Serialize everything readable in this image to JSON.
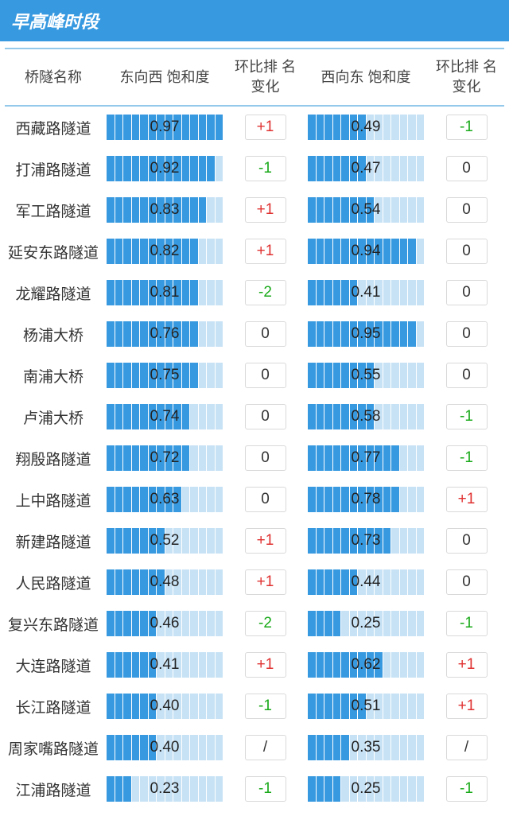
{
  "title": "早高峰时段",
  "columns": [
    "桥隧名称",
    "东向西\n饱和度",
    "环比排\n名变化",
    "西向东\n饱和度",
    "环比排\n名变化"
  ],
  "bar_segments": 14,
  "colors": {
    "banner_bg": "#3799e0",
    "banner_text": "#ffffff",
    "table_border": "#95c9eb",
    "bar_on": "#3799e0",
    "bar_off": "#c7e2f5",
    "delta_pos": "#e03030",
    "delta_neg": "#1aaa1a",
    "delta_zero": "#333333",
    "box_border": "#d9d9d9"
  },
  "rows": [
    {
      "name": "西藏路隧道",
      "ew": 0.97,
      "ew_d": "+1",
      "we": 0.49,
      "we_d": "-1"
    },
    {
      "name": "打浦路隧道",
      "ew": 0.92,
      "ew_d": "-1",
      "we": 0.47,
      "we_d": "0"
    },
    {
      "name": "军工路隧道",
      "ew": 0.83,
      "ew_d": "+1",
      "we": 0.54,
      "we_d": "0"
    },
    {
      "name": "延安东路隧道",
      "ew": 0.82,
      "ew_d": "+1",
      "we": 0.94,
      "we_d": "0"
    },
    {
      "name": "龙耀路隧道",
      "ew": 0.81,
      "ew_d": "-2",
      "we": 0.41,
      "we_d": "0"
    },
    {
      "name": "杨浦大桥",
      "ew": 0.76,
      "ew_d": "0",
      "we": 0.95,
      "we_d": "0"
    },
    {
      "name": "南浦大桥",
      "ew": 0.75,
      "ew_d": "0",
      "we": 0.55,
      "we_d": "0"
    },
    {
      "name": "卢浦大桥",
      "ew": 0.74,
      "ew_d": "0",
      "we": 0.58,
      "we_d": "-1"
    },
    {
      "name": "翔殷路隧道",
      "ew": 0.72,
      "ew_d": "0",
      "we": 0.77,
      "we_d": "-1"
    },
    {
      "name": "上中路隧道",
      "ew": 0.63,
      "ew_d": "0",
      "we": 0.78,
      "we_d": "+1"
    },
    {
      "name": "新建路隧道",
      "ew": 0.52,
      "ew_d": "+1",
      "we": 0.73,
      "we_d": "0"
    },
    {
      "name": "人民路隧道",
      "ew": 0.48,
      "ew_d": "+1",
      "we": 0.44,
      "we_d": "0"
    },
    {
      "name": "复兴东路隧道",
      "ew": 0.46,
      "ew_d": "-2",
      "we": 0.25,
      "we_d": "-1"
    },
    {
      "name": "大连路隧道",
      "ew": 0.41,
      "ew_d": "+1",
      "we": 0.62,
      "we_d": "+1"
    },
    {
      "name": "长江路隧道",
      "ew": 0.4,
      "ew_d": "-1",
      "we": 0.51,
      "we_d": "+1"
    },
    {
      "name": "周家嘴路隧道",
      "ew": 0.4,
      "ew_d": "/",
      "we": 0.35,
      "we_d": "/"
    },
    {
      "name": "江浦路隧道",
      "ew": 0.23,
      "ew_d": "-1",
      "we": 0.25,
      "we_d": "-1"
    }
  ]
}
